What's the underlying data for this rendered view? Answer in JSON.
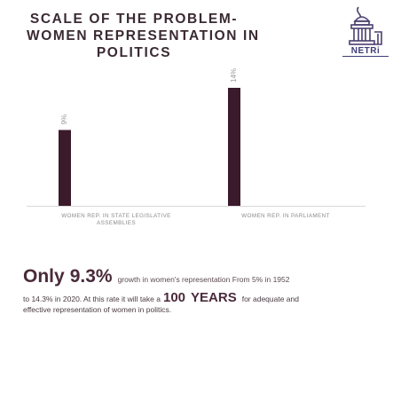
{
  "title": {
    "line1": "SCALE OF THE PROBLEM-",
    "line2": "WOMEN REPRESENTATION IN",
    "line3": "POLITICS"
  },
  "logo": {
    "text": "NETRi"
  },
  "chart_data": {
    "type": "bar",
    "categories": [
      "WOMEN REP. IN STATE LEGISLATIVE ASSEMBLIES",
      "WOMEN REP. IN PARLIAMENT"
    ],
    "category_lines": [
      [
        "WOMEN REP. IN STATE LEGISLATIVE",
        "ASSEMBLIES"
      ],
      [
        "WOMEN REP. IN PARLIAMENT"
      ]
    ],
    "values": [
      9,
      14
    ],
    "value_labels": [
      "9%",
      "14%"
    ],
    "bar_color": "#3b1a2b",
    "ylim": [
      0,
      16
    ]
  },
  "footer": {
    "only": "Only",
    "percent": "9.3%",
    "line1_rest": "growth in women's representation From 5% in 1952",
    "line2_start": "to 14.3% in 2020. At this rate it will take a",
    "years_num": "100",
    "years_word": "YEARS",
    "line2_end": "for adequate and",
    "line3": "effective representation of women in politics."
  }
}
